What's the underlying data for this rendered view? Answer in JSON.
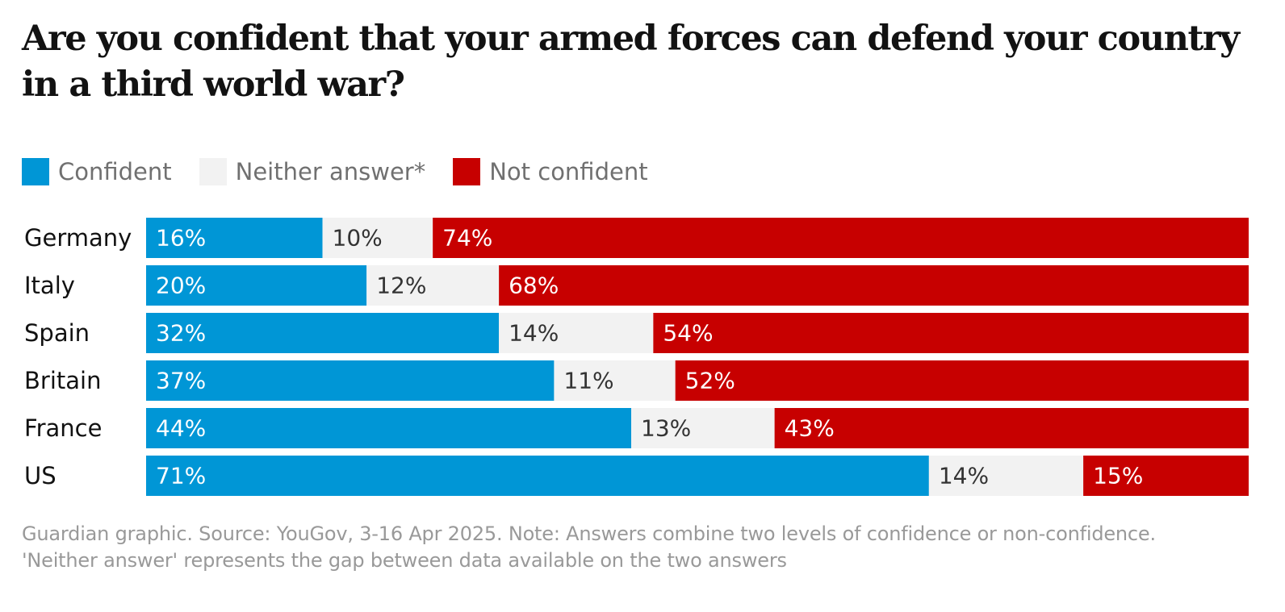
{
  "title": "Are you confident that your armed forces can defend your country in a third world war?",
  "legend": [
    {
      "label": "Confident",
      "color": "#0096d6"
    },
    {
      "label": "Neither answer*",
      "color": "#f2f2f2"
    },
    {
      "label": "Not confident",
      "color": "#c70000"
    }
  ],
  "footnote": "Guardian graphic. Source: YouGov, 3-16 Apr 2025. Note: Answers combine two levels of confidence or non-confidence. 'Neither answer' represents the gap between data available on the two answers",
  "chart_data": {
    "type": "bar",
    "orientation": "horizontal",
    "stacked": true,
    "normalized_to": 100,
    "unit": "%",
    "categories": [
      "Germany",
      "Italy",
      "Spain",
      "Britain",
      "France",
      "US"
    ],
    "series": [
      {
        "name": "Confident",
        "color": "#0096d6",
        "label_color": "#ffffff",
        "values": [
          16,
          20,
          32,
          37,
          44,
          71
        ]
      },
      {
        "name": "Neither answer*",
        "color": "#f2f2f2",
        "label_color": "#333333",
        "values": [
          10,
          12,
          14,
          11,
          13,
          14
        ]
      },
      {
        "name": "Not confident",
        "color": "#c70000",
        "label_color": "#ffffff",
        "values": [
          74,
          68,
          54,
          52,
          43,
          15
        ]
      }
    ],
    "xlim": [
      0,
      100
    ],
    "grid": false,
    "legend_position": "top-left"
  }
}
